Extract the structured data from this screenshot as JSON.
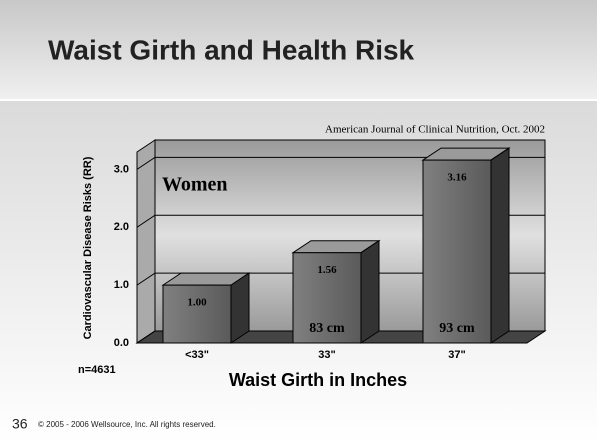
{
  "title": "Waist Girth and Health Risk",
  "footer": {
    "page_number": "36",
    "copyright": "© 2005 - 2006 Wellsource, Inc. All rights reserved."
  },
  "chart_data": {
    "type": "bar3d",
    "source": "American Journal of Clinical Nutrition, Oct. 2002",
    "annotation": "Women",
    "sample_size": "n=4631",
    "y_label": "Cardiovascular Disease Risks (RR)",
    "x_label": "Waist Girth in Inches",
    "categories": [
      "<33\"",
      "33\"",
      "37\""
    ],
    "values": [
      1.0,
      1.56,
      3.16
    ],
    "value_labels": [
      "1.00",
      "1.56",
      "3.16"
    ],
    "bar_notes": [
      null,
      "83 cm",
      "93 cm"
    ],
    "color": "#666666",
    "ylim": [
      0,
      3.3
    ],
    "yticks": [
      {
        "value": 0,
        "label": "0.0"
      },
      {
        "value": 1,
        "label": "1.0"
      },
      {
        "value": 2,
        "label": "2.0"
      },
      {
        "value": 3,
        "label": "3.0"
      }
    ],
    "grid": true
  }
}
